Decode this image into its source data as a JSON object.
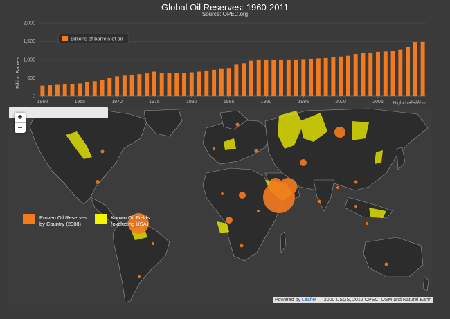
{
  "title": "Global Oil Reserves: 1960-2011",
  "subtitle": "Source: OPEC.org",
  "chart_data": {
    "type": "bar",
    "ylabel": "Billion Barrels",
    "ylim": [
      0,
      2000
    ],
    "yticks": [
      "0",
      "500",
      "1,000",
      "1,500",
      "2,000"
    ],
    "xticks": [
      "1960",
      "1965",
      "1970",
      "1975",
      "1980",
      "1985",
      "1990",
      "1995",
      "2000",
      "2005",
      "2010"
    ],
    "series": [
      {
        "name": "Billions of barrels of oil",
        "color": "#f47a1f",
        "x": [
          1960,
          1961,
          1962,
          1963,
          1964,
          1965,
          1966,
          1967,
          1968,
          1969,
          1970,
          1971,
          1972,
          1973,
          1974,
          1975,
          1976,
          1977,
          1978,
          1979,
          1980,
          1981,
          1982,
          1983,
          1984,
          1985,
          1986,
          1987,
          1988,
          1989,
          1990,
          1991,
          1992,
          1993,
          1994,
          1995,
          1996,
          1997,
          1998,
          1999,
          2000,
          2001,
          2002,
          2003,
          2004,
          2005,
          2006,
          2007,
          2008,
          2009,
          2010,
          2011
        ],
        "values": [
          290,
          300,
          310,
          330,
          340,
          350,
          380,
          410,
          450,
          500,
          540,
          560,
          580,
          600,
          620,
          670,
          640,
          630,
          630,
          640,
          650,
          670,
          700,
          720,
          760,
          770,
          860,
          900,
          970,
          990,
          990,
          990,
          990,
          1000,
          1000,
          1010,
          1020,
          1030,
          1040,
          1060,
          1080,
          1100,
          1150,
          1170,
          1190,
          1210,
          1220,
          1230,
          1270,
          1340,
          1470,
          1480
        ]
      }
    ],
    "legend_position": "top-left",
    "grid": true
  },
  "credit": "Highcharts.com",
  "map": {
    "zoom_in_label": "+",
    "zoom_out_label": "−",
    "legend": {
      "reserves_label_line1": "Proven Oil Reserves",
      "reserves_label_line2": "by Country (2008)",
      "fields_label_line1": "Known Oil Fields",
      "fields_label_line2": "(excluding USA)",
      "reserves_color": "#f47a1f",
      "fields_color": "#f5f500"
    },
    "attribution_prefix": "Powered by",
    "attribution_link": "Leaflet",
    "attribution_suffix": "— 2000 USGS, 2012 OPEC, OSM and Natural Earth"
  }
}
